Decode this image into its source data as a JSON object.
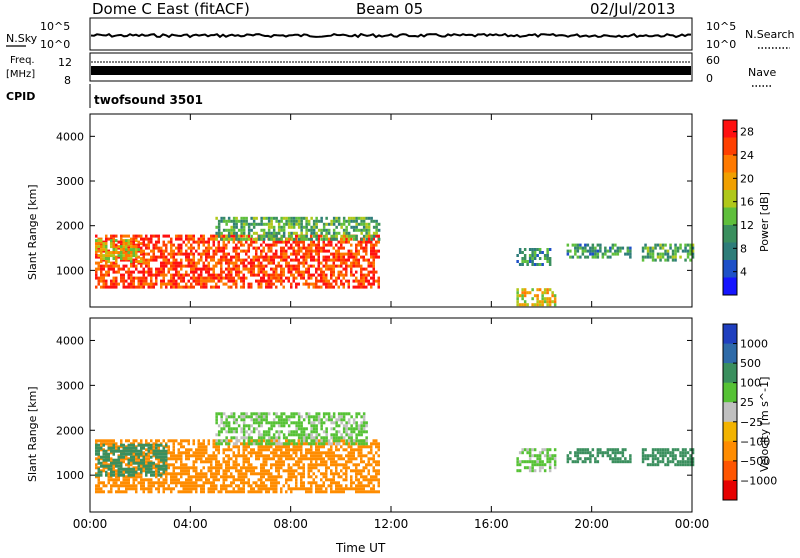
{
  "header": {
    "station": "Dome C East (fitACF)",
    "beam": "Beam 05",
    "date": "02/Jul/2013"
  },
  "top_strips": {
    "nsky": {
      "label": "N.Sky",
      "ticks": [
        "10^5",
        "10^0"
      ],
      "right_label": "N.Search",
      "right_ticks": [
        "10^5",
        "10^0"
      ]
    },
    "freq": {
      "label_line1": "Freq.",
      "label_line2": "[MHz]",
      "ticks": [
        "12",
        "8"
      ],
      "right_label": "Nave",
      "right_ticks": [
        "60",
        "0"
      ]
    },
    "cpid": {
      "label": "CPID",
      "text": "twofsound 3501"
    }
  },
  "chart_data": [
    {
      "type": "heatmap",
      "name": "power-panel",
      "xlabel": "",
      "ylabel": "Slant Range [km]",
      "x_ticks": [
        "00:00",
        "04:00",
        "08:00",
        "12:00",
        "16:00",
        "20:00",
        "00:00"
      ],
      "x_range_hours": [
        0,
        24
      ],
      "y_ticks": [
        1000,
        2000,
        3000,
        4000
      ],
      "ylim": [
        180,
        4500
      ],
      "colorbar": {
        "label": "Power [dB]",
        "ticks": [
          "4",
          "8",
          "12",
          "16",
          "20",
          "24",
          "28"
        ],
        "range": [
          0,
          30
        ],
        "colors": [
          "#1515ff",
          "#1d50c8",
          "#2e7d7a",
          "#3a8f5e",
          "#5fbf3c",
          "#b0c81a",
          "#f0a000",
          "#ff7a00",
          "#ff4000",
          "#ff1010"
        ]
      },
      "regions": [
        {
          "t": [
            0.2,
            11.5
          ],
          "r": [
            600,
            1800
          ],
          "level": 26
        },
        {
          "t": [
            0.2,
            2.0
          ],
          "r": [
            1200,
            1700
          ],
          "level": 18
        },
        {
          "t": [
            5.0,
            11.5
          ],
          "r": [
            1700,
            2200
          ],
          "level": 12
        },
        {
          "t": [
            17.0,
            18.5
          ],
          "r": [
            200,
            600
          ],
          "level": 18
        },
        {
          "t": [
            17.0,
            18.3
          ],
          "r": [
            1100,
            1500
          ],
          "level": 10
        },
        {
          "t": [
            19.0,
            21.5
          ],
          "r": [
            1300,
            1600
          ],
          "level": 10
        },
        {
          "t": [
            22.0,
            24.0
          ],
          "r": [
            1200,
            1600
          ],
          "level": 12
        }
      ]
    },
    {
      "type": "heatmap",
      "name": "velocity-panel",
      "xlabel": "Time UT",
      "ylabel": "Slant Range [km]",
      "x_ticks": [
        "00:00",
        "04:00",
        "08:00",
        "12:00",
        "16:00",
        "20:00",
        "00:00"
      ],
      "x_range_hours": [
        0,
        24
      ],
      "y_ticks": [
        1000,
        2000,
        3000,
        4000
      ],
      "ylim": [
        180,
        4500
      ],
      "colorbar": {
        "label": "Velocity [m s^-1]",
        "ticks": [
          "1000",
          "500",
          "100",
          "25",
          "−25",
          "−100",
          "−500",
          "−1000"
        ],
        "colors": [
          "#1f3fbf",
          "#2e6aa8",
          "#3a8f5e",
          "#56c235",
          "#c0c0c0",
          "#f2b300",
          "#ff8c00",
          "#ff5500",
          "#e60000"
        ]
      },
      "regions": [
        {
          "t": [
            0.2,
            11.5
          ],
          "r": [
            600,
            1800
          ],
          "level": -100
        },
        {
          "t": [
            0.2,
            3.0
          ],
          "r": [
            1000,
            1700
          ],
          "level": 100
        },
        {
          "t": [
            5.0,
            11.0
          ],
          "r": [
            1700,
            2400
          ],
          "level": 25
        },
        {
          "t": [
            17.0,
            18.5
          ],
          "r": [
            1100,
            1600
          ],
          "level": 25
        },
        {
          "t": [
            19.0,
            21.5
          ],
          "r": [
            1300,
            1600
          ],
          "level": 100
        },
        {
          "t": [
            22.0,
            24.0
          ],
          "r": [
            1200,
            1600
          ],
          "level": 100
        }
      ]
    }
  ]
}
